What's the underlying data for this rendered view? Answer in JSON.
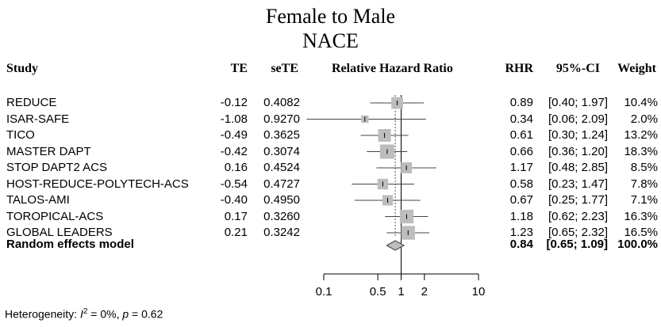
{
  "chart_data": {
    "type": "forest",
    "title": "Female to Male",
    "subtitle": "NACE",
    "headers": {
      "study": "Study",
      "te": "TE",
      "sete": "seTE",
      "plot": "Relative Hazard Ratio",
      "rhr": "RHR",
      "ci": "95%-CI",
      "weight": "Weight"
    },
    "x_scale": "log",
    "xlim": [
      0.1,
      10
    ],
    "ticks": [
      {
        "value": 0.1,
        "label": "0.1"
      },
      {
        "value": 0.5,
        "label": "0.5"
      },
      {
        "value": 1,
        "label": "1"
      },
      {
        "value": 2,
        "label": "2"
      },
      {
        "value": 10,
        "label": "10"
      }
    ],
    "reference_value": 1,
    "studies": [
      {
        "study": "REDUCE",
        "te": "-0.12",
        "sete": "0.4082",
        "rhr": 0.89,
        "lower": 0.4,
        "upper": 1.97,
        "rhr_label": "0.89",
        "ci_label": "[0.40; 1.97]",
        "weight": "10.4%",
        "weight_value": 10.4
      },
      {
        "study": "ISAR-SAFE",
        "te": "-1.08",
        "sete": "0.9270",
        "rhr": 0.34,
        "lower": 0.06,
        "upper": 2.09,
        "rhr_label": "0.34",
        "ci_label": "[0.06; 2.09]",
        "weight": "2.0%",
        "weight_value": 2.0
      },
      {
        "study": "TICO",
        "te": "-0.49",
        "sete": "0.3625",
        "rhr": 0.61,
        "lower": 0.3,
        "upper": 1.24,
        "rhr_label": "0.61",
        "ci_label": "[0.30; 1.24]",
        "weight": "13.2%",
        "weight_value": 13.2
      },
      {
        "study": "MASTER DAPT",
        "te": "-0.42",
        "sete": "0.3074",
        "rhr": 0.66,
        "lower": 0.36,
        "upper": 1.2,
        "rhr_label": "0.66",
        "ci_label": "[0.36; 1.20]",
        "weight": "18.3%",
        "weight_value": 18.3
      },
      {
        "study": "STOP DAPT2 ACS",
        "te": "0.16",
        "sete": "0.4524",
        "rhr": 1.17,
        "lower": 0.48,
        "upper": 2.85,
        "rhr_label": "1.17",
        "ci_label": "[0.48; 2.85]",
        "weight": "8.5%",
        "weight_value": 8.5
      },
      {
        "study": "HOST-REDUCE-POLYTECH-ACS",
        "te": "-0.54",
        "sete": "0.4727",
        "rhr": 0.58,
        "lower": 0.23,
        "upper": 1.47,
        "rhr_label": "0.58",
        "ci_label": "[0.23; 1.47]",
        "weight": "7.8%",
        "weight_value": 7.8
      },
      {
        "study": "TALOS-AMI",
        "te": "-0.40",
        "sete": "0.4950",
        "rhr": 0.67,
        "lower": 0.25,
        "upper": 1.77,
        "rhr_label": "0.67",
        "ci_label": "[0.25; 1.77]",
        "weight": "7.1%",
        "weight_value": 7.1
      },
      {
        "study": "TOROPICAL-ACS",
        "te": "0.17",
        "sete": "0.3260",
        "rhr": 1.18,
        "lower": 0.62,
        "upper": 2.23,
        "rhr_label": "1.18",
        "ci_label": "[0.62; 2.23]",
        "weight": "16.3%",
        "weight_value": 16.3
      },
      {
        "study": "GLOBAL LEADERS",
        "te": "0.21",
        "sete": "0.3242",
        "rhr": 1.23,
        "lower": 0.65,
        "upper": 2.32,
        "rhr_label": "1.23",
        "ci_label": "[0.65; 2.32]",
        "weight": "16.5%",
        "weight_value": 16.5
      }
    ],
    "summary": {
      "label": "Random effects model",
      "rhr": 0.84,
      "lower": 0.65,
      "upper": 1.09,
      "rhr_label": "0.84",
      "ci_label": "[0.65; 1.09]",
      "weight": "100.0%"
    },
    "heterogeneity": {
      "prefix": "Heterogeneity: ",
      "i_symbol": "I",
      "i_sup": "2",
      "i_value": " = 0%, ",
      "p_symbol": "p",
      "p_value": " = 0.62"
    }
  }
}
